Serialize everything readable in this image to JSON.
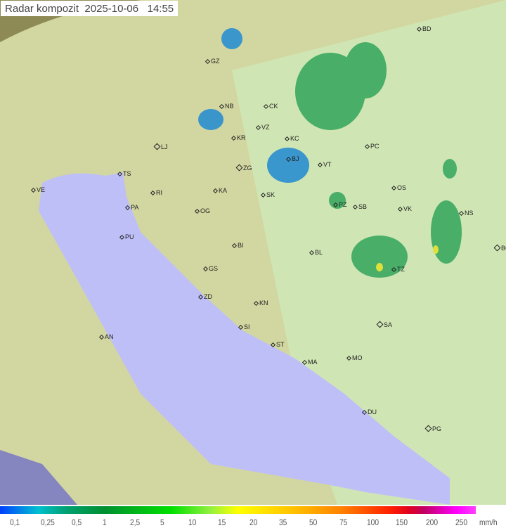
{
  "header": {
    "title": "Radar kompozit  2025-10-06   14:55"
  },
  "legend": {
    "ticks": [
      "0,1",
      "0,25",
      "0,5",
      "1",
      "2,5",
      "5",
      "10",
      "15",
      "20",
      "35",
      "50",
      "75",
      "100",
      "150",
      "200",
      "250"
    ],
    "unit": "mm/h"
  },
  "colors": {
    "sea": "#bfbff8",
    "radar_coverage": "#d8eeb8",
    "land": "#c8c090",
    "rain_low": "#2a8fd0",
    "rain_mid": "#3aa860",
    "rain_high": "#e0e030"
  },
  "cities": [
    "BD",
    "GZ",
    "NB",
    "CK",
    "VZ",
    "KR",
    "LJ",
    "KC",
    "PC",
    "ZG",
    "BJ",
    "VT",
    "TS",
    "KA",
    "SK",
    "VE",
    "RI",
    "OS",
    "PZ",
    "SB",
    "VK",
    "NS",
    "PA",
    "OG",
    "PU",
    "BG",
    "BI",
    "BL",
    "GS",
    "TZ",
    "ZD",
    "KN",
    "SA",
    "SI",
    "AN",
    "ST",
    "MO",
    "MA",
    "DU",
    "PG"
  ]
}
